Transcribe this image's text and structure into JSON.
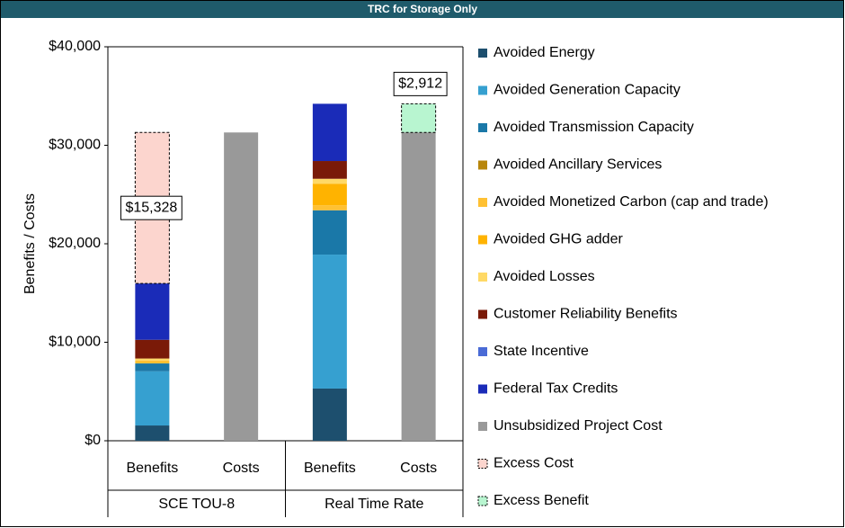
{
  "chart_data": {
    "type": "stacked_bar",
    "title": "TRC for Storage Only",
    "y_label": "Benefits / Costs",
    "groups": [
      {
        "label": "SCE TOU-8",
        "categories": [
          "Benefits",
          "Costs"
        ]
      },
      {
        "label": "Real Time Rate",
        "categories": [
          "Benefits",
          "Costs"
        ]
      }
    ],
    "ylim": [
      0,
      40000
    ],
    "yticks": [
      {
        "value": 0,
        "label": "$0"
      },
      {
        "value": 10000,
        "label": "$10,000"
      },
      {
        "value": 20000,
        "label": "$20,000"
      },
      {
        "value": 30000,
        "label": "$30,000"
      },
      {
        "value": 40000,
        "label": "$40,000"
      }
    ],
    "series": [
      {
        "name": "Avoided Energy",
        "color": "#1d4f6e",
        "values": [
          1550,
          null,
          5300,
          null
        ]
      },
      {
        "name": "Avoided Generation Capacity",
        "color": "#36a0d0",
        "values": [
          5500,
          null,
          13600,
          null
        ]
      },
      {
        "name": "Avoided Transmission Capacity",
        "color": "#1a78a8",
        "values": [
          800,
          null,
          4500,
          null
        ]
      },
      {
        "name": "Avoided Ancillary Services",
        "color": "#b8860b",
        "values": [
          0,
          null,
          0,
          null
        ]
      },
      {
        "name": "Avoided Monetized Carbon (cap and trade)",
        "color": "#ffc133",
        "values": [
          300,
          null,
          500,
          null
        ]
      },
      {
        "name": "Avoided GHG adder",
        "color": "#ffb300",
        "values": [
          0,
          null,
          2200,
          null
        ]
      },
      {
        "name": "Avoided Losses",
        "color": "#ffd966",
        "values": [
          200,
          null,
          500,
          null
        ]
      },
      {
        "name": "Customer Reliability Benefits",
        "color": "#7a1a08",
        "values": [
          1900,
          null,
          1800,
          null
        ]
      },
      {
        "name": "State Incentive",
        "color": "#4a6bd6",
        "values": [
          0,
          null,
          0,
          null
        ]
      },
      {
        "name": "Federal Tax Credits",
        "color": "#1a2bb8",
        "values": [
          5722,
          null,
          5812,
          null
        ]
      },
      {
        "name": "Unsubsidized Project Cost",
        "color": "#999999",
        "values": [
          null,
          31300,
          null,
          31300
        ]
      },
      {
        "name": "Excess Cost",
        "color": "#fcd5ce",
        "dashed": true,
        "values": [
          15328,
          null,
          null,
          null
        ],
        "value_labels": [
          "$15,328",
          null,
          null,
          null
        ]
      },
      {
        "name": "Excess Benefit",
        "color": "#b8f5d0",
        "dashed": true,
        "values": [
          null,
          null,
          null,
          2912
        ],
        "value_labels": [
          null,
          null,
          null,
          "$2,912"
        ]
      }
    ]
  }
}
